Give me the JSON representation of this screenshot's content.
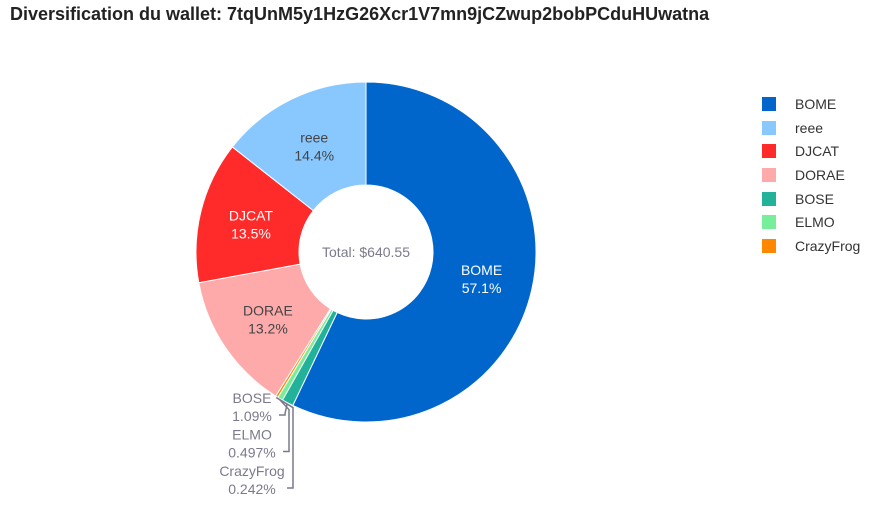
{
  "title": "Diversification du wallet: 7tqUnM5y1HzG26Xcr1V7mn9jCZwup2bobPCduHUwatna",
  "chart_data": {
    "type": "pie",
    "hole": true,
    "center_label": "Total: $640.55",
    "legend_position": "right",
    "slices": [
      {
        "label": "BOME",
        "percent": 57.1,
        "percent_text": "57.1%",
        "color": "#0066cc",
        "text_color": "#ffffff",
        "label_position": "inside"
      },
      {
        "label": "BOSE",
        "percent": 1.09,
        "percent_text": "1.09%",
        "color": "#22b29a",
        "text_color": "#7a7a8c",
        "label_position": "outside"
      },
      {
        "label": "ELMO",
        "percent": 0.497,
        "percent_text": "0.497%",
        "color": "#77ee99",
        "text_color": "#7a7a8c",
        "label_position": "outside"
      },
      {
        "label": "CrazyFrog",
        "percent": 0.242,
        "percent_text": "0.242%",
        "color": "#ff8800",
        "text_color": "#7a7a8c",
        "label_position": "outside"
      },
      {
        "label": "DORAE",
        "percent": 13.2,
        "percent_text": "13.2%",
        "color": "#ffaaaa",
        "text_color": "#444444",
        "label_position": "inside"
      },
      {
        "label": "DJCAT",
        "percent": 13.5,
        "percent_text": "13.5%",
        "color": "#ff2a2a",
        "text_color": "#ffffff",
        "label_position": "inside"
      },
      {
        "label": "reee",
        "percent": 14.4,
        "percent_text": "14.4%",
        "color": "#88c8ff",
        "text_color": "#444444",
        "label_position": "inside"
      }
    ],
    "legend": [
      "BOME",
      "reee",
      "DJCAT",
      "DORAE",
      "BOSE",
      "ELMO",
      "CrazyFrog"
    ]
  }
}
